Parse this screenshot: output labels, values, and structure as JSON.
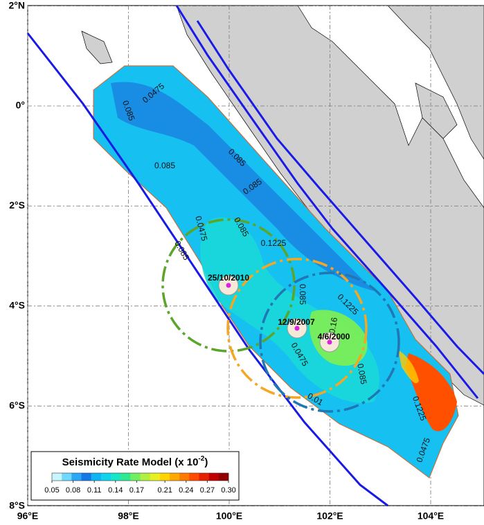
{
  "map": {
    "lon_ticks": [
      {
        "value": 96,
        "label": "96°E"
      },
      {
        "value": 98,
        "label": "98°E"
      },
      {
        "value": 100,
        "label": "100°E"
      },
      {
        "value": 102,
        "label": "102°E"
      },
      {
        "value": 104,
        "label": "104°E"
      }
    ],
    "lat_ticks": [
      {
        "value": 2,
        "label": "2°N"
      },
      {
        "value": 0,
        "label": "0°"
      },
      {
        "value": -2,
        "label": "2°S"
      },
      {
        "value": -4,
        "label": "4°S"
      },
      {
        "value": -6,
        "label": "6°S"
      },
      {
        "value": -8,
        "label": "8°S"
      }
    ],
    "contour_labels": [
      "0.085",
      "0.0475",
      "0.085",
      "0.085",
      "0.085",
      "0.0475",
      "0.085",
      "0.1225",
      "0.085",
      "0.085",
      "0.1225",
      "0.16",
      "0.0475",
      "0.085",
      "0.01",
      "0.1225",
      "0.0475"
    ],
    "events": [
      "25/10/2010",
      "12/9/2007",
      "4/6/2000"
    ],
    "colorbar": {
      "title": "Seismicity Rate Model (x 10",
      "title_exponent": "-2",
      "title_end": ")",
      "ticks": [
        {
          "value": 0.05,
          "label": "0.05"
        },
        {
          "value": 0.08,
          "label": "0.08"
        },
        {
          "value": 0.11,
          "label": "0.11"
        },
        {
          "value": 0.14,
          "label": "0.14"
        },
        {
          "value": 0.17,
          "label": "0.17"
        },
        {
          "value": 0.21,
          "label": "0.21"
        },
        {
          "value": 0.24,
          "label": "0.24"
        },
        {
          "value": 0.27,
          "label": "0.27"
        },
        {
          "value": 0.3,
          "label": "0.30"
        }
      ],
      "range": [
        0.05,
        0.3
      ],
      "colors": [
        "#c8f6ff",
        "#6fd8ff",
        "#2aa8f5",
        "#1478e6",
        "#0fb4f5",
        "#10d4ee",
        "#18e6c8",
        "#30e890",
        "#70f060",
        "#b0f040",
        "#e8f020",
        "#ffd400",
        "#ffa800",
        "#ff7a00",
        "#ff4a00",
        "#e82000",
        "#c00000",
        "#900000"
      ]
    }
  }
}
